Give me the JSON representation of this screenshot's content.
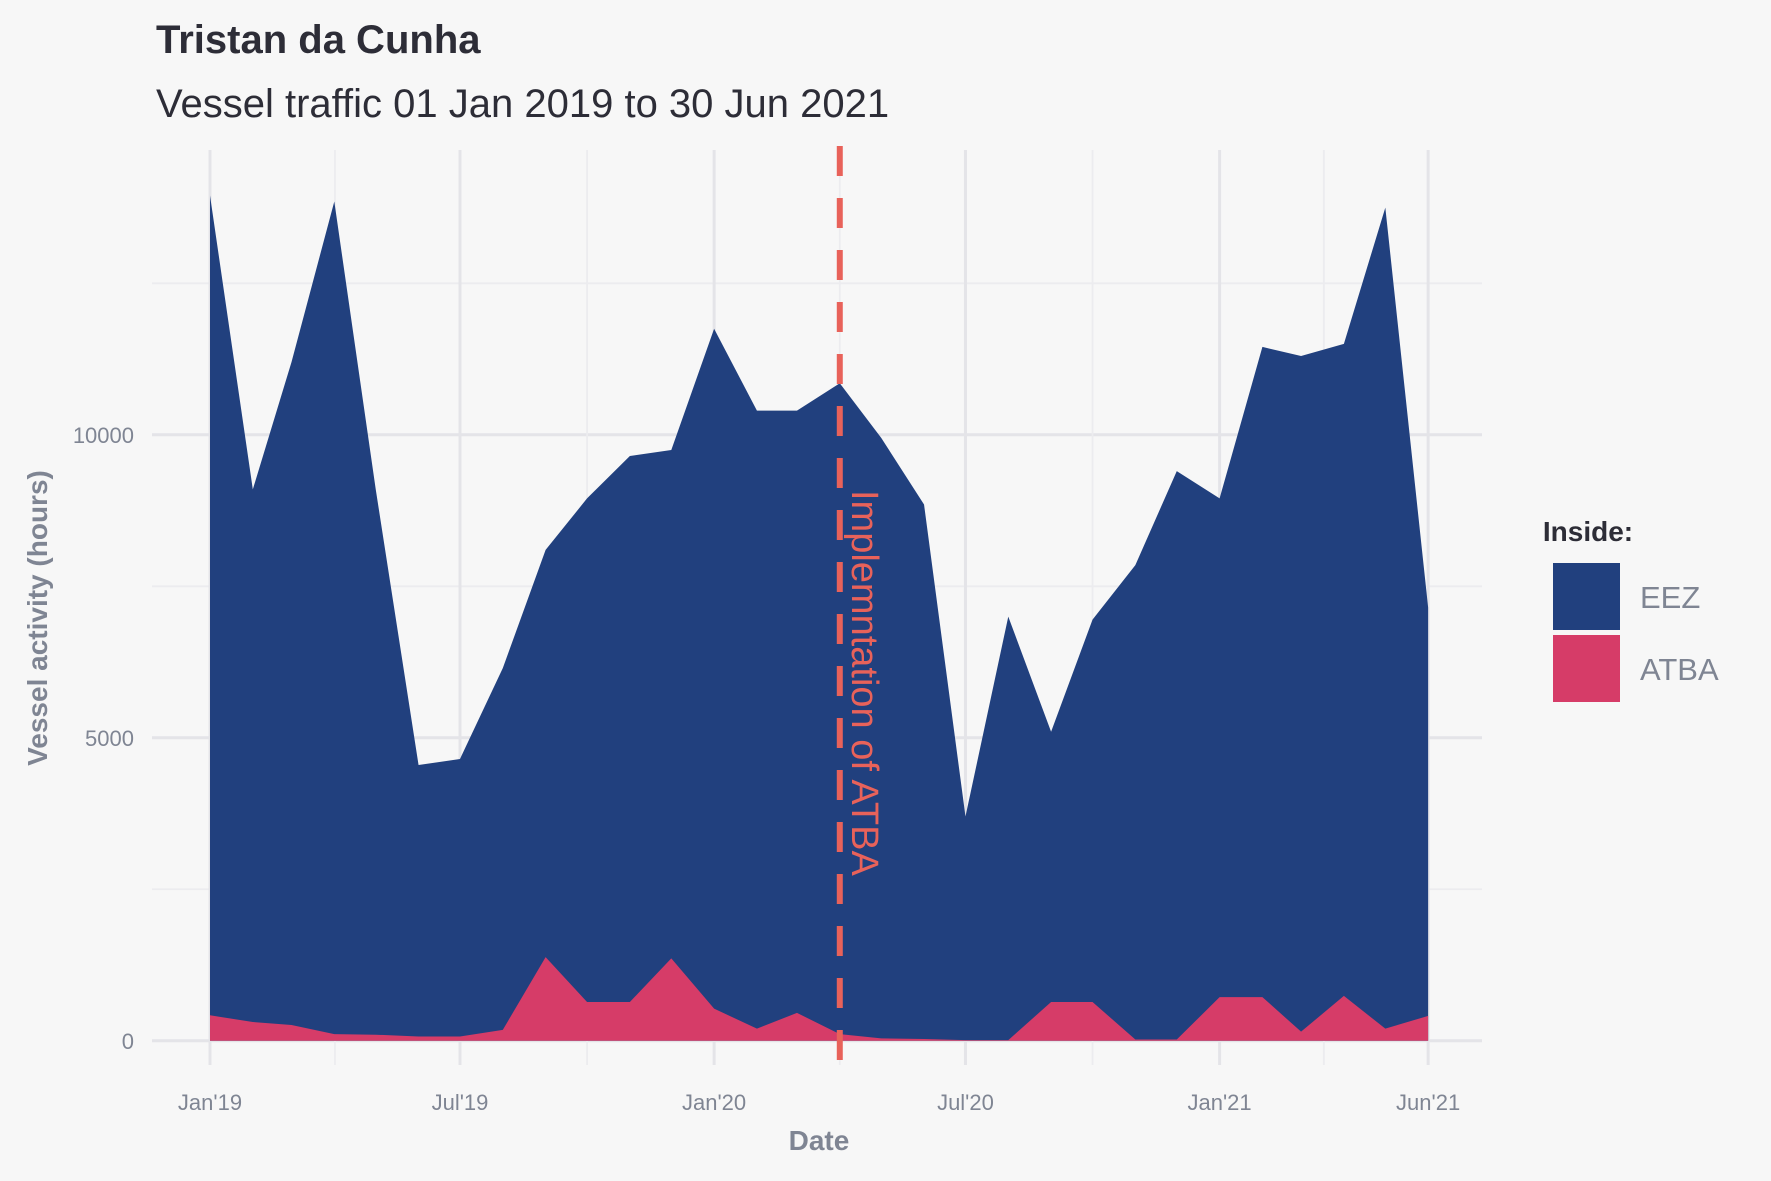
{
  "chart_data": {
    "type": "area",
    "title": "Tristan da Cunha",
    "subtitle": "Vessel traffic 01 Jan 2019 to 30 Jun 2021",
    "xlabel": "Date",
    "ylabel": "Vessel activity (hours)",
    "x": [
      "2019-01-01",
      "2019-02-01",
      "2019-03-01",
      "2019-04-01",
      "2019-05-01",
      "2019-06-01",
      "2019-07-01",
      "2019-08-01",
      "2019-09-01",
      "2019-10-01",
      "2019-11-01",
      "2019-12-01",
      "2020-01-01",
      "2020-02-01",
      "2020-03-01",
      "2020-04-01",
      "2020-05-01",
      "2020-06-01",
      "2020-07-01",
      "2020-08-01",
      "2020-09-01",
      "2020-10-01",
      "2020-11-01",
      "2020-12-01",
      "2021-01-01",
      "2021-02-01",
      "2021-03-01",
      "2021-04-01",
      "2021-05-01",
      "2021-06-01"
    ],
    "series": [
      {
        "name": "EEZ",
        "color": "#21407e",
        "values": [
          13950,
          9100,
          11200,
          13850,
          9100,
          4550,
          4650,
          6150,
          8100,
          8950,
          9650,
          9750,
          11750,
          10400,
          10400,
          10850,
          9950,
          8850,
          3700,
          7000,
          5100,
          6950,
          7850,
          9400,
          8950,
          11450,
          11300,
          11500,
          13750,
          7150
        ]
      },
      {
        "name": "ATBA",
        "color": "#d63c68",
        "values": [
          420,
          310,
          260,
          110,
          100,
          70,
          70,
          180,
          1380,
          640,
          640,
          1360,
          530,
          200,
          460,
          110,
          40,
          30,
          10,
          10,
          640,
          640,
          20,
          20,
          720,
          720,
          150,
          740,
          200,
          410
        ]
      }
    ],
    "ylim": [
      -400,
      14700
    ],
    "yticks": [
      0,
      5000,
      10000
    ],
    "xticks": [
      {
        "date": "2019-01-01",
        "label": "Jan'19"
      },
      {
        "date": "2019-07-01",
        "label": "Jul'19"
      },
      {
        "date": "2020-01-01",
        "label": "Jan'20"
      },
      {
        "date": "2020-07-01",
        "label": "Jul'20"
      },
      {
        "date": "2021-01-01",
        "label": "Jan'21"
      },
      {
        "date": "2021-06-01",
        "label": "Jun'21"
      }
    ],
    "grid": true,
    "legend": {
      "title": "Inside:",
      "position": "right"
    },
    "annotation": {
      "date": "2020-04-01",
      "text": "Implemntation of ATBA",
      "color": "#e8625a"
    }
  }
}
